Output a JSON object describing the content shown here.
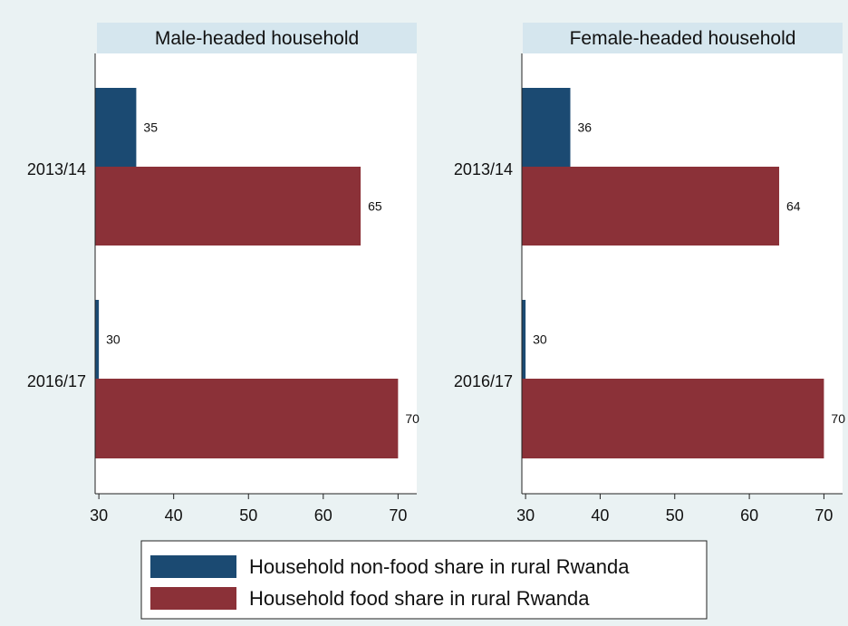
{
  "chart_data": {
    "type": "bar",
    "orientation": "horizontal",
    "categories": [
      "2013/14",
      "2016/17"
    ],
    "xlim": [
      29.5,
      72.5
    ],
    "xticks": [
      30,
      40,
      50,
      60,
      70
    ],
    "grid": false,
    "legend_position": "bottom",
    "colors": {
      "non_food": "#1b4a72",
      "food": "#8b3138",
      "panel_header": "#d5e6ee"
    },
    "panels": [
      {
        "title": "Male-headed household",
        "series": [
          {
            "name": "Household non-food share in rural Rwanda",
            "values": [
              35,
              30
            ]
          },
          {
            "name": "Household food share in rural Rwanda",
            "values": [
              65,
              70
            ]
          }
        ],
        "labels": [
          [
            "35",
            "65"
          ],
          [
            "30",
            "70"
          ]
        ]
      },
      {
        "title": "Female-headed household",
        "series": [
          {
            "name": "Household non-food share in rural Rwanda",
            "values": [
              36,
              30
            ]
          },
          {
            "name": "Household food share in rural Rwanda",
            "values": [
              64,
              70
            ]
          }
        ],
        "labels": [
          [
            "36",
            "64"
          ],
          [
            "30",
            "70"
          ]
        ]
      }
    ],
    "legend": [
      "Household non-food share in rural Rwanda",
      "Household food share in rural Rwanda"
    ]
  }
}
